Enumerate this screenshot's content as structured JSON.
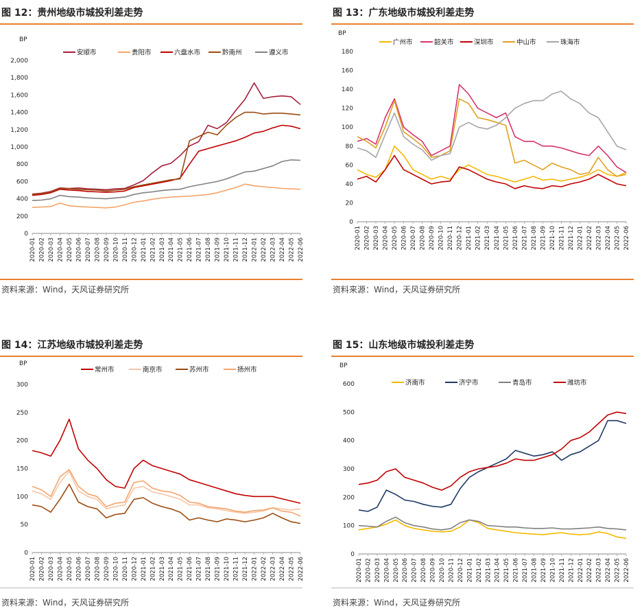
{
  "source_text": "资料来源：Wind，天风证券研究所",
  "categories": [
    "2020-01",
    "2020-02",
    "2020-03",
    "2020-04",
    "2020-05",
    "2020-06",
    "2020-07",
    "2020-08",
    "2020-09",
    "2020-10",
    "2020-11",
    "2020-12",
    "2021-01",
    "2021-02",
    "2021-03",
    "2021-04",
    "2021-05",
    "2021-06",
    "2021-07",
    "2021-08",
    "2021-09",
    "2021-10",
    "2021-11",
    "2021-12",
    "2022-01",
    "2022-02",
    "2022-03",
    "2022-04",
    "2022-05",
    "2022-06"
  ],
  "chart_data": [
    {
      "id": "fig12",
      "type": "line",
      "title": "图 12：贵州地级市城投利差走势",
      "ylabel": "BP",
      "ylim": [
        0,
        2000
      ],
      "yticks": [
        "0",
        "200",
        "400",
        "600",
        "800",
        "1,000",
        "1,200",
        "1,400",
        "1,600",
        "1,800",
        "2,000"
      ],
      "legend": "top",
      "series": [
        {
          "name": "安顺市",
          "color": "#A61E3C",
          "values": [
            455,
            465,
            485,
            525,
            520,
            525,
            515,
            510,
            505,
            515,
            520,
            560,
            610,
            700,
            780,
            810,
            900,
            1010,
            1060,
            1250,
            1210,
            1280,
            1420,
            1550,
            1740,
            1560,
            1580,
            1590,
            1580,
            1490
          ]
        },
        {
          "name": "贵阳市",
          "color": "#F5A46A",
          "values": [
            300,
            305,
            310,
            350,
            320,
            310,
            305,
            300,
            295,
            305,
            330,
            360,
            375,
            395,
            410,
            420,
            425,
            430,
            440,
            450,
            470,
            500,
            530,
            570,
            550,
            540,
            530,
            520,
            515,
            510
          ]
        },
        {
          "name": "六盘水市",
          "color": "#C00000",
          "values": [
            440,
            450,
            470,
            510,
            500,
            495,
            485,
            480,
            475,
            480,
            490,
            530,
            550,
            570,
            590,
            610,
            640,
            800,
            950,
            980,
            1010,
            1040,
            1070,
            1110,
            1160,
            1180,
            1220,
            1250,
            1240,
            1210
          ]
        },
        {
          "name": "黔南州",
          "color": "#9B4A10",
          "values": [
            450,
            460,
            480,
            520,
            515,
            510,
            505,
            500,
            490,
            500,
            510,
            540,
            560,
            580,
            600,
            620,
            630,
            1070,
            1120,
            1170,
            1140,
            1250,
            1340,
            1400,
            1400,
            1380,
            1390,
            1390,
            1380,
            1370
          ]
        },
        {
          "name": "遵义市",
          "color": "#808080",
          "values": [
            380,
            385,
            400,
            440,
            425,
            420,
            410,
            405,
            400,
            410,
            420,
            450,
            470,
            480,
            495,
            505,
            510,
            540,
            560,
            580,
            600,
            630,
            670,
            710,
            720,
            750,
            780,
            830,
            850,
            845
          ]
        }
      ]
    },
    {
      "id": "fig13",
      "type": "line",
      "title": "图 13：广东地级市城投利差走势",
      "ylabel": "BP",
      "ylim": [
        0,
        180
      ],
      "yticks": [
        "0",
        "20",
        "40",
        "60",
        "80",
        "100",
        "120",
        "140",
        "160",
        "180"
      ],
      "legend": "top",
      "series": [
        {
          "name": "广州市",
          "color": "#F5B800",
          "values": [
            55,
            50,
            47,
            55,
            80,
            70,
            55,
            50,
            45,
            48,
            45,
            55,
            60,
            55,
            50,
            48,
            45,
            42,
            45,
            48,
            44,
            45,
            43,
            45,
            47,
            50,
            55,
            50,
            48,
            52
          ]
        },
        {
          "name": "韶关市",
          "color": "#D6336C",
          "values": [
            85,
            88,
            82,
            110,
            130,
            100,
            92,
            85,
            70,
            75,
            80,
            145,
            135,
            120,
            115,
            110,
            115,
            90,
            85,
            85,
            80,
            80,
            78,
            75,
            72,
            70,
            80,
            70,
            58,
            52
          ]
        },
        {
          "name": "深圳市",
          "color": "#C00000",
          "values": [
            45,
            48,
            42,
            55,
            70,
            55,
            50,
            45,
            40,
            42,
            43,
            58,
            55,
            50,
            45,
            42,
            40,
            35,
            38,
            36,
            35,
            38,
            37,
            40,
            42,
            45,
            50,
            45,
            40,
            38
          ]
        },
        {
          "name": "中山市",
          "color": "#E0A020",
          "values": [
            90,
            85,
            78,
            100,
            128,
            95,
            88,
            80,
            68,
            70,
            75,
            130,
            125,
            110,
            108,
            105,
            102,
            62,
            65,
            60,
            55,
            62,
            58,
            55,
            50,
            52,
            68,
            55,
            48,
            50
          ]
        },
        {
          "name": "珠海市",
          "color": "#A6A6A6",
          "values": [
            78,
            75,
            68,
            92,
            115,
            90,
            82,
            76,
            65,
            70,
            72,
            100,
            105,
            100,
            98,
            102,
            110,
            120,
            125,
            128,
            128,
            135,
            138,
            130,
            125,
            115,
            110,
            95,
            80,
            76
          ]
        }
      ]
    },
    {
      "id": "fig14",
      "type": "line",
      "title": "图 14：江苏地级市城投利差走势",
      "ylabel": "BP",
      "ylim": [
        0,
        300
      ],
      "yticks": [
        "0",
        "50",
        "100",
        "150",
        "200",
        "250",
        "300"
      ],
      "legend": "top",
      "series": [
        {
          "name": "常州市",
          "color": "#C00000",
          "values": [
            182,
            178,
            172,
            200,
            238,
            185,
            165,
            150,
            130,
            118,
            115,
            150,
            165,
            155,
            150,
            145,
            140,
            130,
            125,
            120,
            115,
            110,
            105,
            102,
            100,
            100,
            100,
            96,
            92,
            88
          ]
        },
        {
          "name": "南京市",
          "color": "#F7C6A8",
          "values": [
            110,
            105,
            95,
            125,
            145,
            110,
            100,
            95,
            78,
            82,
            85,
            115,
            118,
            108,
            105,
            100,
            95,
            85,
            85,
            80,
            78,
            75,
            72,
            70,
            72,
            74,
            80,
            78,
            76,
            78
          ]
        },
        {
          "name": "苏州市",
          "color": "#9B4A10",
          "values": [
            85,
            82,
            72,
            95,
            122,
            90,
            82,
            78,
            62,
            68,
            70,
            95,
            98,
            88,
            82,
            78,
            72,
            58,
            62,
            58,
            55,
            60,
            58,
            55,
            58,
            62,
            70,
            62,
            55,
            52
          ]
        },
        {
          "name": "扬州市",
          "color": "#F5A46A",
          "values": [
            118,
            112,
            100,
            135,
            148,
            118,
            105,
            100,
            82,
            88,
            90,
            125,
            128,
            115,
            110,
            108,
            102,
            90,
            88,
            82,
            80,
            78,
            74,
            72,
            75,
            76,
            80,
            74,
            72,
            65
          ]
        }
      ]
    },
    {
      "id": "fig15",
      "type": "line",
      "title": "图 15：山东地级市城投利差走势",
      "ylabel": "BP",
      "ylim": [
        0,
        600
      ],
      "yticks": [
        "0",
        "100",
        "200",
        "300",
        "400",
        "500",
        "600"
      ],
      "legend": "top",
      "series": [
        {
          "name": "济南市",
          "color": "#F5B800",
          "values": [
            85,
            90,
            95,
            105,
            120,
            100,
            90,
            85,
            80,
            78,
            80,
            95,
            120,
            110,
            90,
            85,
            80,
            75,
            72,
            70,
            68,
            72,
            75,
            70,
            68,
            70,
            78,
            72,
            60,
            55
          ]
        },
        {
          "name": "济宁市",
          "color": "#1F3864",
          "values": [
            155,
            150,
            165,
            225,
            210,
            190,
            185,
            175,
            168,
            165,
            175,
            230,
            270,
            290,
            305,
            320,
            335,
            365,
            355,
            345,
            350,
            360,
            330,
            350,
            360,
            380,
            400,
            470,
            470,
            460
          ]
        },
        {
          "name": "青岛市",
          "color": "#7F7F7F",
          "values": [
            100,
            98,
            95,
            115,
            130,
            110,
            100,
            95,
            88,
            85,
            90,
            110,
            120,
            115,
            100,
            98,
            95,
            95,
            92,
            90,
            90,
            92,
            88,
            88,
            90,
            92,
            95,
            90,
            88,
            85
          ]
        },
        {
          "name": "潍坊市",
          "color": "#C00000",
          "values": [
            245,
            250,
            260,
            290,
            300,
            270,
            260,
            250,
            235,
            225,
            240,
            270,
            290,
            300,
            305,
            310,
            320,
            335,
            330,
            330,
            340,
            350,
            370,
            400,
            410,
            430,
            460,
            490,
            500,
            495
          ]
        }
      ]
    }
  ]
}
